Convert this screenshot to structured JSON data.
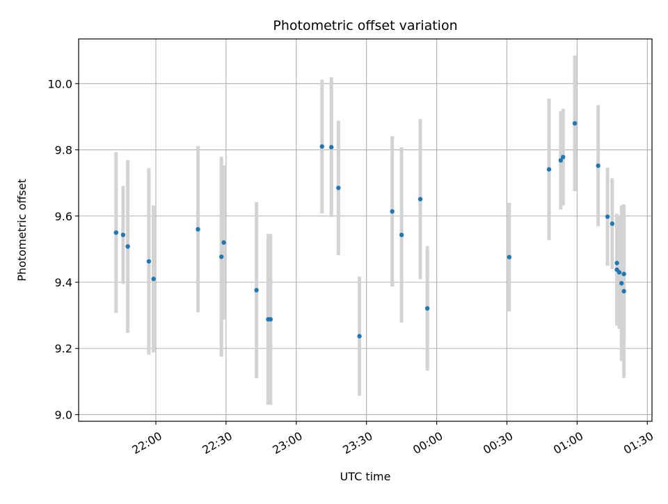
{
  "chart_data": {
    "type": "scatter",
    "title": "Photometric offset variation",
    "xlabel": "UTC time",
    "ylabel": "Photometric offset",
    "grid": true,
    "colors": {
      "point": "#1f77b4",
      "errorbar": "#d3d3d3",
      "grid": "#b0b0b0",
      "axis": "#000000"
    },
    "x_ticks": [
      "22:00",
      "22:30",
      "23:00",
      "23:30",
      "00:00",
      "00:30",
      "01:00",
      "01:30"
    ],
    "y_ticks": [
      "9.0",
      "9.2",
      "9.4",
      "9.6",
      "9.8",
      "10.0"
    ],
    "xlim": [
      "21:27",
      "01:32"
    ],
    "ylim": [
      8.98,
      10.135
    ],
    "points": [
      {
        "t": "21:43",
        "y": 9.55,
        "err": 0.243
      },
      {
        "t": "21:46",
        "y": 9.543,
        "err": 0.148
      },
      {
        "t": "21:48",
        "y": 9.508,
        "err": 0.261
      },
      {
        "t": "21:57",
        "y": 9.463,
        "err": 0.282
      },
      {
        "t": "21:59",
        "y": 9.41,
        "err": 0.222
      },
      {
        "t": "22:18",
        "y": 9.56,
        "err": 0.251
      },
      {
        "t": "22:28",
        "y": 9.477,
        "err": 0.302
      },
      {
        "t": "22:29",
        "y": 9.52,
        "err": 0.233
      },
      {
        "t": "22:43",
        "y": 9.376,
        "err": 0.266
      },
      {
        "t": "22:48",
        "y": 9.288,
        "err": 0.258
      },
      {
        "t": "22:49",
        "y": 9.288,
        "err": 0.258
      },
      {
        "t": "23:11",
        "y": 9.81,
        "err": 0.202
      },
      {
        "t": "23:15",
        "y": 9.808,
        "err": 0.211
      },
      {
        "t": "23:18",
        "y": 9.685,
        "err": 0.203
      },
      {
        "t": "23:27",
        "y": 9.237,
        "err": 0.18
      },
      {
        "t": "23:41",
        "y": 9.614,
        "err": 0.227
      },
      {
        "t": "23:45",
        "y": 9.543,
        "err": 0.265
      },
      {
        "t": "23:53",
        "y": 9.651,
        "err": 0.242
      },
      {
        "t": "23:56",
        "y": 9.321,
        "err": 0.188
      },
      {
        "t": "00:31",
        "y": 9.476,
        "err": 0.164
      },
      {
        "t": "00:48",
        "y": 9.741,
        "err": 0.214
      },
      {
        "t": "00:53",
        "y": 9.768,
        "err": 0.148
      },
      {
        "t": "00:54",
        "y": 9.778,
        "err": 0.146
      },
      {
        "t": "00:59",
        "y": 9.88,
        "err": 0.205
      },
      {
        "t": "01:09",
        "y": 9.752,
        "err": 0.183
      },
      {
        "t": "01:13",
        "y": 9.598,
        "err": 0.148
      },
      {
        "t": "01:15",
        "y": 9.577,
        "err": 0.137
      },
      {
        "t": "01:17",
        "y": 9.438,
        "err": 0.169
      },
      {
        "t": "01:17",
        "y": 9.458,
        "err": 0.147
      },
      {
        "t": "01:18",
        "y": 9.43,
        "err": 0.171
      },
      {
        "t": "01:19",
        "y": 9.397,
        "err": 0.235
      },
      {
        "t": "01:20",
        "y": 9.373,
        "err": 0.262
      },
      {
        "t": "01:20",
        "y": 9.425,
        "err": 0.203
      }
    ]
  }
}
